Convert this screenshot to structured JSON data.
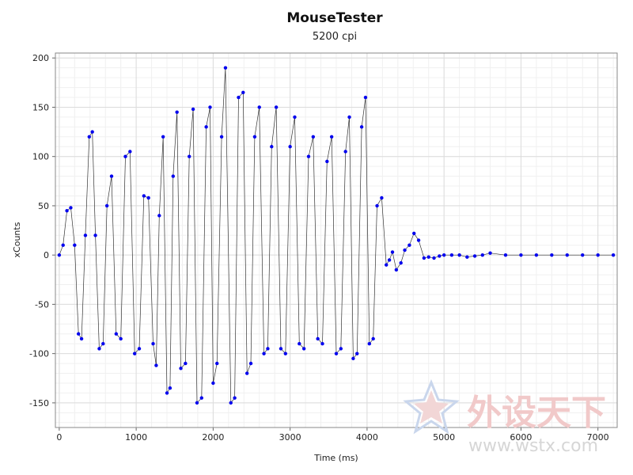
{
  "chart_data": {
    "type": "scatter",
    "title": "MouseTester",
    "subtitle": "5200 cpi",
    "xlabel": "Time (ms)",
    "ylabel": "xCounts",
    "xlim": [
      -50,
      7250
    ],
    "ylim": [
      -175,
      205
    ],
    "xticks": [
      0,
      1000,
      2000,
      3000,
      4000,
      5000,
      6000,
      7000
    ],
    "yticks": [
      -150,
      -100,
      -50,
      0,
      50,
      100,
      150,
      200
    ],
    "grid": true,
    "marker_color": "#0000ee",
    "line_color": "#333333",
    "series": [
      {
        "x": [
          0,
          50,
          100,
          150,
          200,
          250,
          290,
          340,
          390,
          430,
          470,
          520,
          570,
          620,
          680,
          740,
          800,
          860,
          920,
          980,
          1040,
          1100,
          1160,
          1220,
          1260,
          1300,
          1350,
          1400,
          1440,
          1480,
          1530,
          1580,
          1640,
          1690,
          1740,
          1790,
          1850,
          1910,
          1960,
          2000,
          2050,
          2110,
          2160,
          2230,
          2280,
          2330,
          2390,
          2440,
          2490,
          2540,
          2600,
          2660,
          2710,
          2760,
          2820,
          2880,
          2940,
          3000,
          3060,
          3120,
          3180,
          3240,
          3300,
          3360,
          3420,
          3480,
          3540,
          3600,
          3660,
          3720,
          3770,
          3820,
          3870,
          3930,
          3980,
          4030,
          4080,
          4130,
          4190,
          4250,
          4290,
          4330,
          4380,
          4440,
          4490,
          4550,
          4610,
          4670,
          4740,
          4800,
          4870,
          4940,
          5000,
          5100,
          5200,
          5300,
          5400,
          5500,
          5600,
          5800,
          6000,
          6200,
          6400,
          6600,
          6800,
          7000,
          7200
        ],
        "y": [
          0,
          10,
          45,
          48,
          10,
          -80,
          -85,
          20,
          120,
          125,
          20,
          -95,
          -90,
          50,
          80,
          -80,
          -85,
          100,
          105,
          -100,
          -95,
          60,
          58,
          -90,
          -112,
          40,
          120,
          -140,
          -135,
          80,
          145,
          -115,
          -110,
          100,
          148,
          -150,
          -145,
          130,
          150,
          -130,
          -110,
          120,
          190,
          -150,
          -145,
          160,
          165,
          -120,
          -110,
          120,
          150,
          -100,
          -95,
          110,
          150,
          -95,
          -100,
          110,
          140,
          -90,
          -95,
          100,
          120,
          -85,
          -90,
          95,
          120,
          -100,
          -95,
          105,
          140,
          -105,
          -100,
          130,
          160,
          -90,
          -85,
          50,
          58,
          -10,
          -5,
          3,
          -15,
          -8,
          5,
          10,
          22,
          15,
          -3,
          -2,
          -3,
          -1,
          0,
          0,
          0,
          -2,
          -1,
          0,
          2,
          0,
          0,
          0,
          0,
          0,
          0,
          0,
          0
        ]
      }
    ]
  },
  "watermark": {
    "text": "外设天下",
    "url": "www.wstx.com"
  }
}
